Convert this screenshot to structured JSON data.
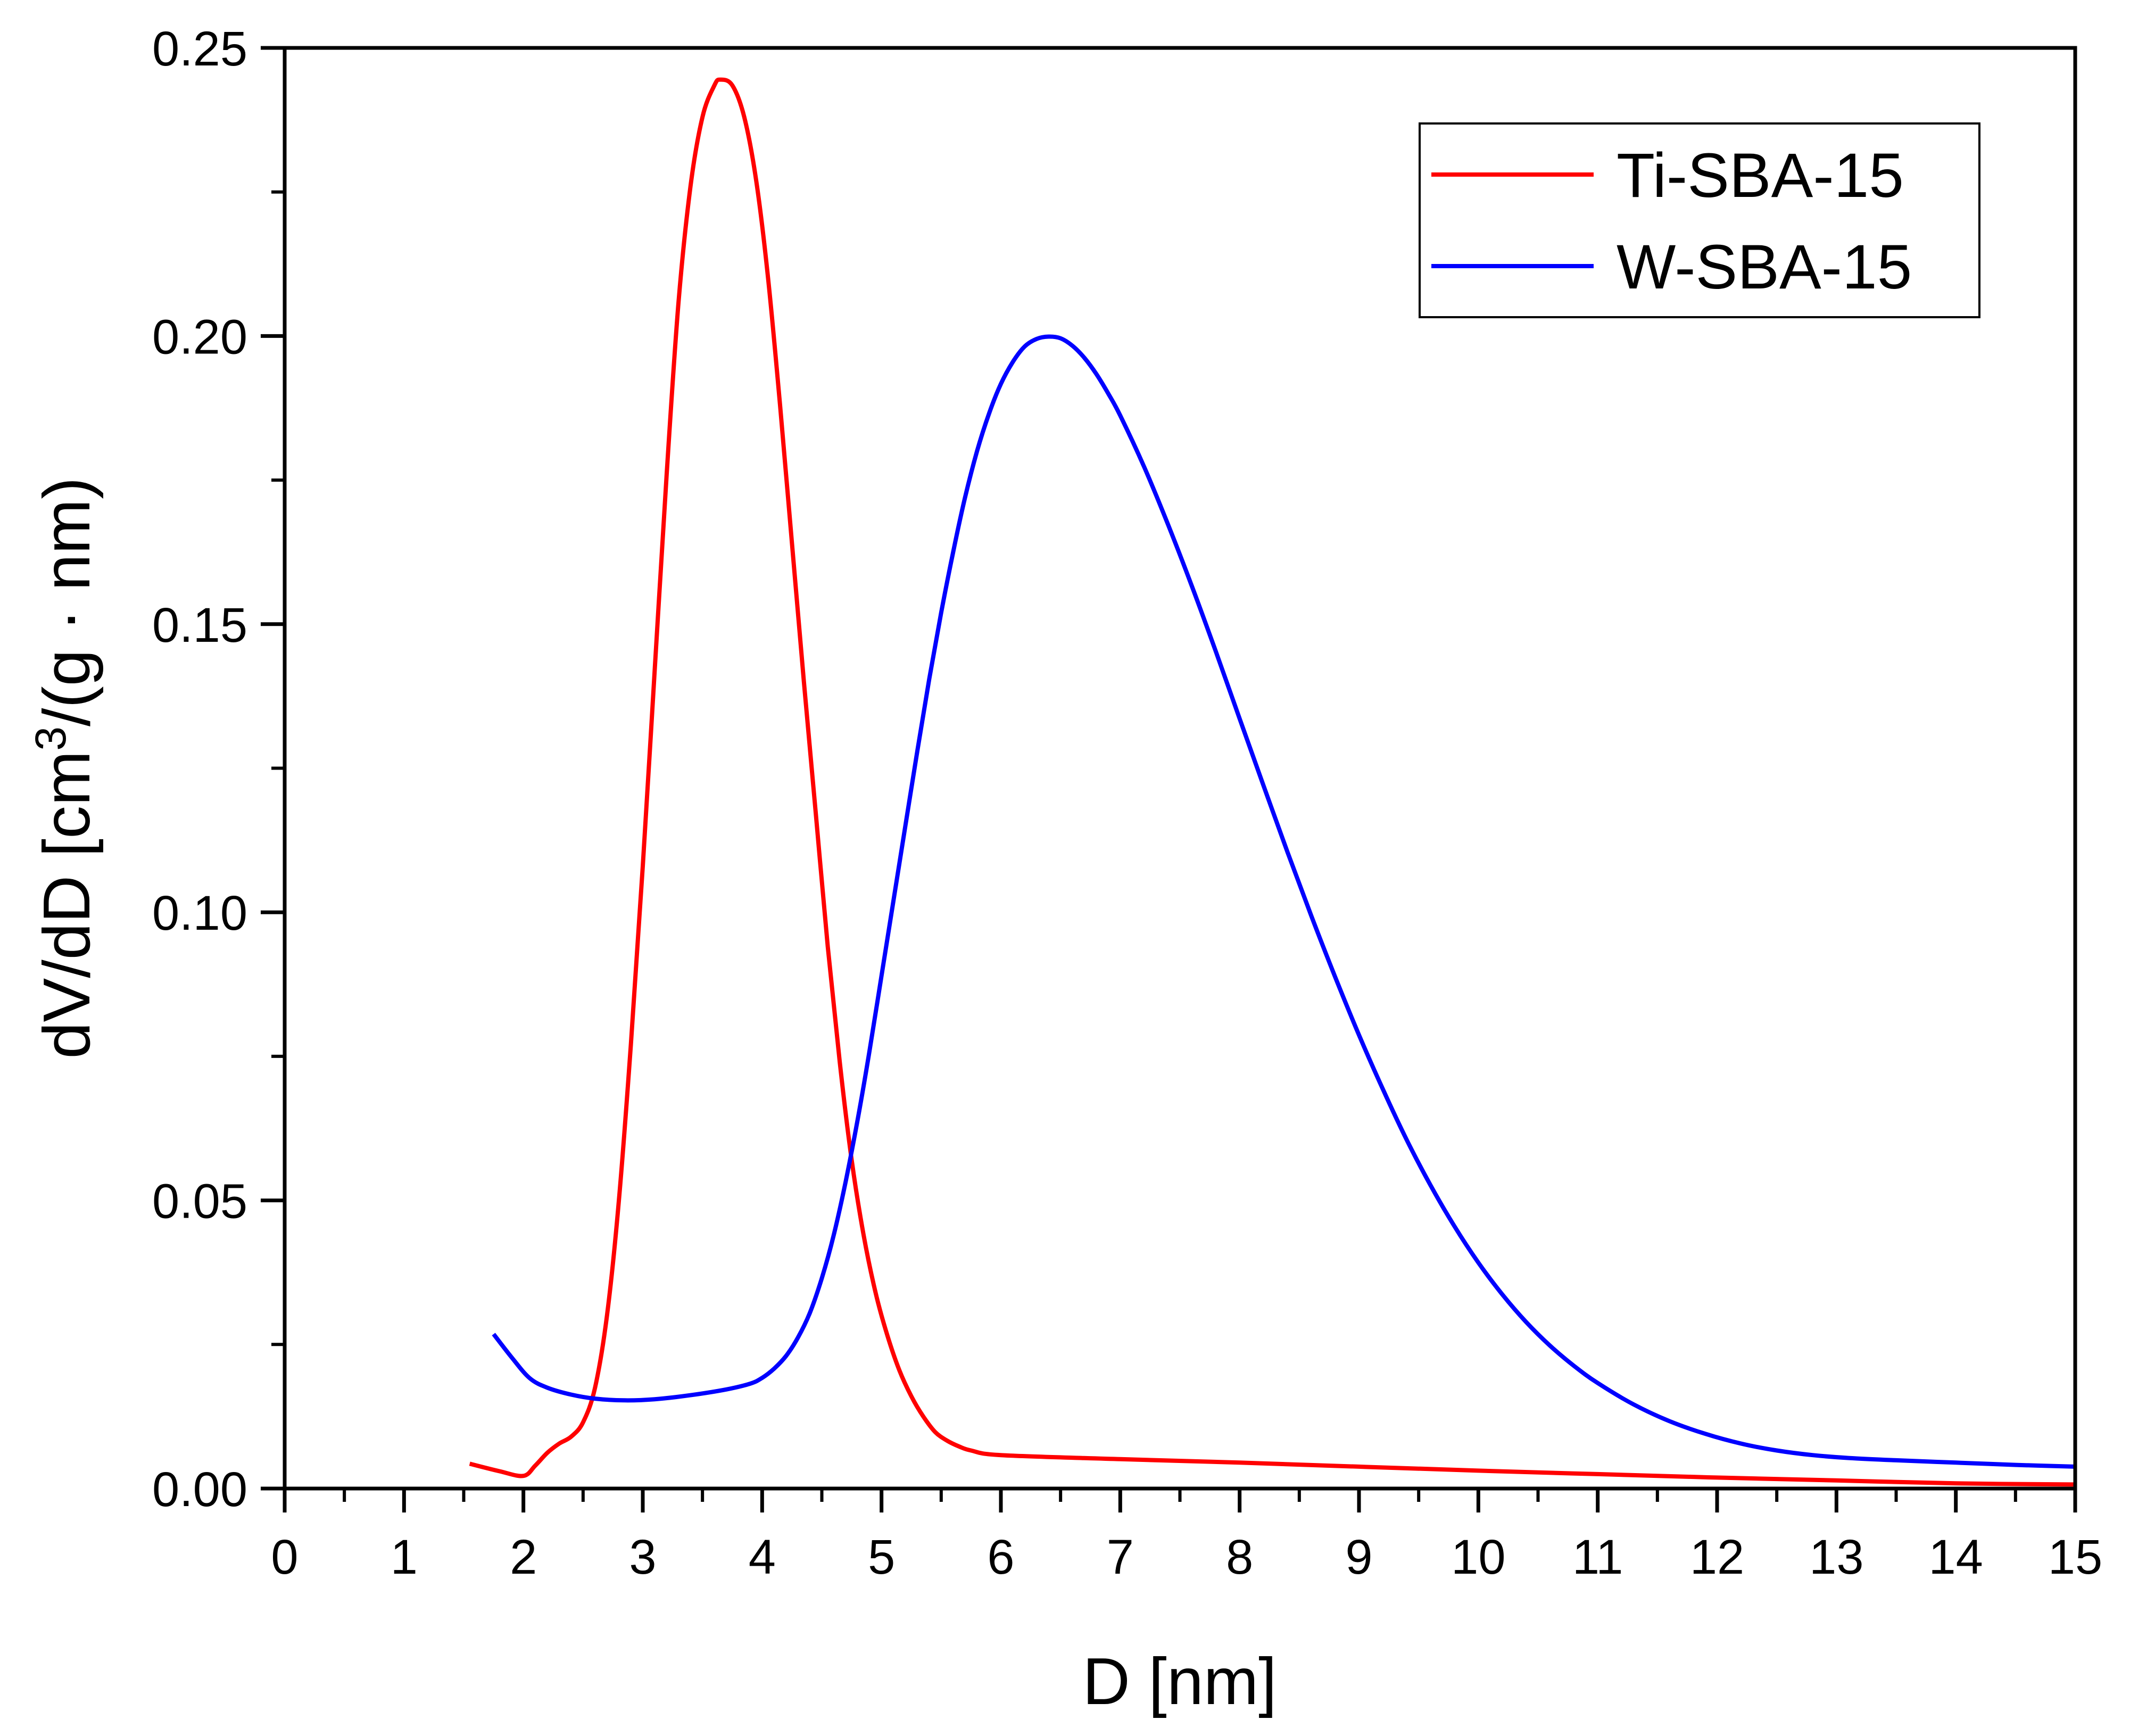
{
  "chart_data": {
    "type": "line",
    "title": "",
    "xlabel": "D [nm]",
    "ylabel": {
      "prefix": "dV/dD [cm",
      "superscript": "3",
      "suffix": "/(g · nm)"
    },
    "xlim": [
      0,
      15
    ],
    "ylim": [
      0,
      0.25
    ],
    "x_ticks": [
      "0",
      "1",
      "2",
      "3",
      "4",
      "5",
      "6",
      "7",
      "8",
      "9",
      "10",
      "11",
      "12",
      "13",
      "14",
      "15"
    ],
    "y_ticks": [
      "0.00",
      "0.05",
      "0.10",
      "0.15",
      "0.20",
      "0.25"
    ],
    "grid": false,
    "legend_position": "top-right",
    "series": [
      {
        "name": "Ti-SBA-15",
        "color": "#ff0000",
        "points": [
          [
            1.55,
            0.0043
          ],
          [
            1.8,
            0.003
          ],
          [
            2.0,
            0.0022
          ],
          [
            2.1,
            0.004
          ],
          [
            2.2,
            0.0062
          ],
          [
            2.3,
            0.0078
          ],
          [
            2.4,
            0.009
          ],
          [
            2.5,
            0.0115
          ],
          [
            2.6,
            0.0175
          ],
          [
            2.7,
            0.03
          ],
          [
            2.8,
            0.05
          ],
          [
            2.9,
            0.077
          ],
          [
            3.0,
            0.108
          ],
          [
            3.1,
            0.142
          ],
          [
            3.2,
            0.176
          ],
          [
            3.3,
            0.206
          ],
          [
            3.4,
            0.226
          ],
          [
            3.5,
            0.238
          ],
          [
            3.6,
            0.2435
          ],
          [
            3.65,
            0.2445
          ],
          [
            3.75,
            0.2435
          ],
          [
            3.85,
            0.238
          ],
          [
            3.95,
            0.227
          ],
          [
            4.05,
            0.21
          ],
          [
            4.15,
            0.188
          ],
          [
            4.25,
            0.164
          ],
          [
            4.35,
            0.14
          ],
          [
            4.45,
            0.117
          ],
          [
            4.55,
            0.094
          ],
          [
            4.65,
            0.074
          ],
          [
            4.75,
            0.057
          ],
          [
            4.85,
            0.044
          ],
          [
            4.95,
            0.034
          ],
          [
            5.05,
            0.0265
          ],
          [
            5.15,
            0.0205
          ],
          [
            5.25,
            0.016
          ],
          [
            5.35,
            0.0125
          ],
          [
            5.45,
            0.0098
          ],
          [
            5.55,
            0.0083
          ],
          [
            5.65,
            0.0073
          ],
          [
            5.75,
            0.0066
          ],
          [
            6.0,
            0.0058
          ],
          [
            7.0,
            0.0051
          ],
          [
            8.0,
            0.0045
          ],
          [
            9.0,
            0.0038
          ],
          [
            10.0,
            0.0031
          ],
          [
            11.0,
            0.0025
          ],
          [
            12.0,
            0.0019
          ],
          [
            13.0,
            0.0014
          ],
          [
            14.0,
            0.0009
          ],
          [
            15.0,
            0.0007
          ]
        ]
      },
      {
        "name": "W-SBA-15",
        "color": "#0000ff",
        "points": [
          [
            1.75,
            0.0268
          ],
          [
            1.9,
            0.0228
          ],
          [
            2.05,
            0.0192
          ],
          [
            2.2,
            0.0175
          ],
          [
            2.4,
            0.0163
          ],
          [
            2.6,
            0.0156
          ],
          [
            2.85,
            0.0153
          ],
          [
            3.1,
            0.0155
          ],
          [
            3.4,
            0.0162
          ],
          [
            3.7,
            0.0172
          ],
          [
            3.9,
            0.0182
          ],
          [
            4.0,
            0.0192
          ],
          [
            4.1,
            0.0208
          ],
          [
            4.2,
            0.023
          ],
          [
            4.3,
            0.0262
          ],
          [
            4.4,
            0.0305
          ],
          [
            4.5,
            0.0365
          ],
          [
            4.6,
            0.044
          ],
          [
            4.7,
            0.0533
          ],
          [
            4.8,
            0.064
          ],
          [
            4.9,
            0.076
          ],
          [
            5.0,
            0.089
          ],
          [
            5.1,
            0.102
          ],
          [
            5.2,
            0.115
          ],
          [
            5.3,
            0.128
          ],
          [
            5.4,
            0.1405
          ],
          [
            5.5,
            0.152
          ],
          [
            5.6,
            0.1625
          ],
          [
            5.7,
            0.172
          ],
          [
            5.8,
            0.18
          ],
          [
            5.9,
            0.1865
          ],
          [
            6.0,
            0.1917
          ],
          [
            6.1,
            0.1955
          ],
          [
            6.2,
            0.1982
          ],
          [
            6.3,
            0.1995
          ],
          [
            6.4,
            0.1999
          ],
          [
            6.5,
            0.1996
          ],
          [
            6.6,
            0.1983
          ],
          [
            6.7,
            0.1962
          ],
          [
            6.8,
            0.1934
          ],
          [
            6.9,
            0.19
          ],
          [
            7.0,
            0.1862
          ],
          [
            7.2,
            0.1773
          ],
          [
            7.4,
            0.1673
          ],
          [
            7.6,
            0.1566
          ],
          [
            7.8,
            0.1453
          ],
          [
            8.0,
            0.1336
          ],
          [
            8.2,
            0.122
          ],
          [
            8.4,
            0.1105
          ],
          [
            8.6,
            0.0994
          ],
          [
            8.8,
            0.0888
          ],
          [
            9.0,
            0.0787
          ],
          [
            9.2,
            0.0693
          ],
          [
            9.4,
            0.0605
          ],
          [
            9.6,
            0.0526
          ],
          [
            9.8,
            0.0455
          ],
          [
            10.0,
            0.0392
          ],
          [
            10.2,
            0.0337
          ],
          [
            10.4,
            0.0289
          ],
          [
            10.6,
            0.0248
          ],
          [
            10.8,
            0.0213
          ],
          [
            11.0,
            0.0183
          ],
          [
            11.3,
            0.0146
          ],
          [
            11.6,
            0.0117
          ],
          [
            11.9,
            0.0095
          ],
          [
            12.2,
            0.0078
          ],
          [
            12.5,
            0.0066
          ],
          [
            12.8,
            0.0058
          ],
          [
            13.1,
            0.0053
          ],
          [
            13.5,
            0.0049
          ],
          [
            14.0,
            0.0045
          ],
          [
            14.5,
            0.0041
          ],
          [
            15.0,
            0.0038
          ]
        ]
      }
    ]
  }
}
